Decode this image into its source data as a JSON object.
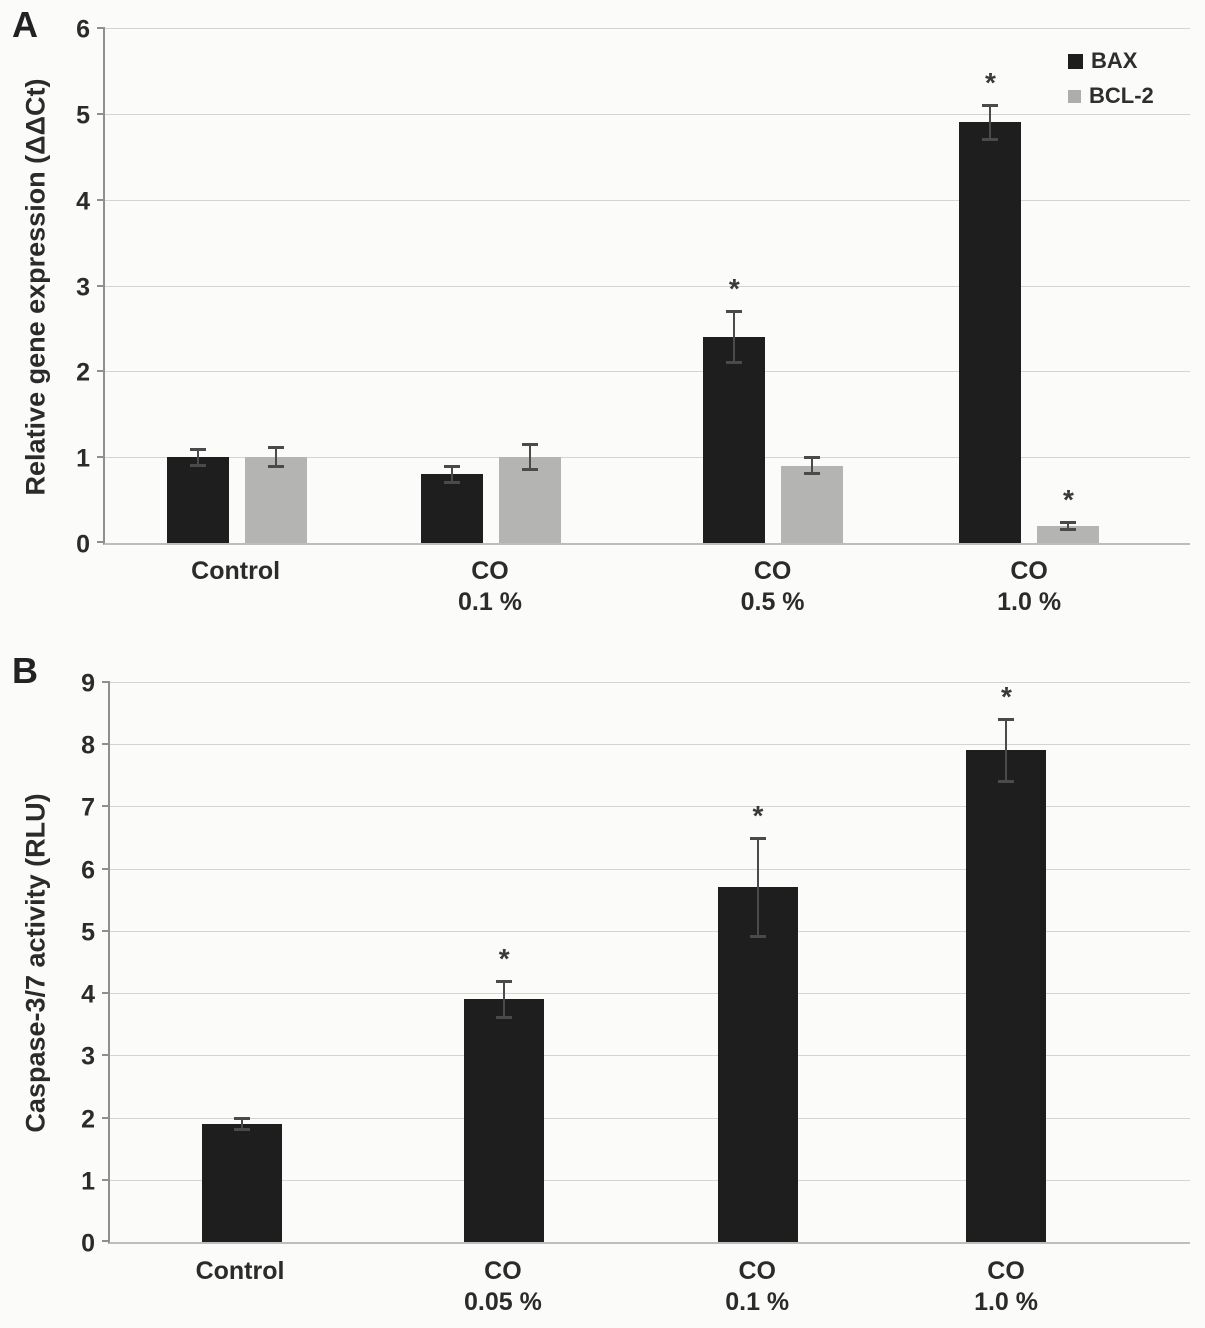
{
  "panels": [
    {
      "letter": "A",
      "y_title": "Relative gene expression (ΔΔCt)",
      "legend": [
        {
          "label": "BAX",
          "color": "#1e1e1e"
        },
        {
          "label": "BCL-2",
          "color": "#adadab"
        }
      ]
    },
    {
      "letter": "B",
      "y_title": "Caspase-3/7 activity (RLU)"
    }
  ],
  "chart_data": [
    {
      "id": "A",
      "type": "bar",
      "title": "",
      "xlabel": "",
      "ylabel": "Relative gene expression (ΔΔCt)",
      "ylim": [
        0,
        6
      ],
      "yticks": [
        0,
        1,
        2,
        3,
        4,
        5,
        6
      ],
      "grid": true,
      "legend_position": "top-right",
      "sig_marker": "*",
      "categories": [
        [
          "Control"
        ],
        [
          "CO",
          "0.1 %"
        ],
        [
          "CO",
          "0.5 %"
        ],
        [
          "CO",
          "1.0 %"
        ]
      ],
      "series": [
        {
          "name": "BAX",
          "color": "#1e1e1e",
          "values": [
            1.0,
            0.8,
            2.4,
            4.9
          ],
          "errors": [
            0.1,
            0.1,
            0.3,
            0.2
          ],
          "significant": [
            false,
            false,
            true,
            true
          ]
        },
        {
          "name": "BCL-2",
          "color": "#b4b4b2",
          "values": [
            1.0,
            1.0,
            0.9,
            0.2
          ],
          "errors": [
            0.12,
            0.15,
            0.1,
            0.05
          ],
          "significant": [
            false,
            false,
            false,
            true
          ]
        }
      ]
    },
    {
      "id": "B",
      "type": "bar",
      "title": "",
      "xlabel": "",
      "ylabel": "Caspase-3/7 activity (RLU)",
      "ylim": [
        0,
        9
      ],
      "yticks": [
        0,
        1,
        2,
        3,
        4,
        5,
        6,
        7,
        8,
        9
      ],
      "grid": true,
      "legend_position": "none",
      "sig_marker": "*",
      "categories": [
        [
          "Control"
        ],
        [
          "CO",
          "0.05 %"
        ],
        [
          "CO",
          "0.1 %"
        ],
        [
          "CO",
          "1.0 %"
        ]
      ],
      "series": [
        {
          "name": "Caspase-3/7 activity",
          "color": "#1e1e1e",
          "values": [
            1.9,
            3.9,
            5.7,
            7.9
          ],
          "errors": [
            0.1,
            0.3,
            0.8,
            0.5
          ],
          "significant": [
            false,
            true,
            true,
            true
          ]
        }
      ]
    }
  ]
}
